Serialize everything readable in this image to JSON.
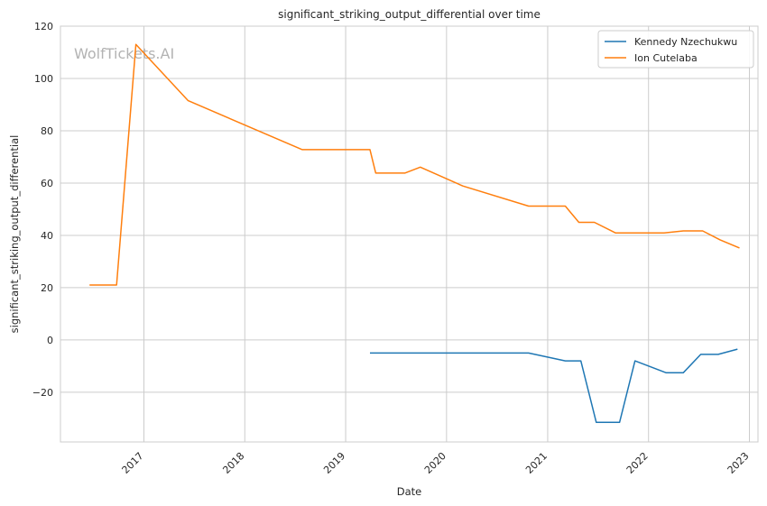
{
  "chart_data": {
    "type": "line",
    "title": "significant_striking_output_differential over time",
    "xlabel": "Date",
    "ylabel": "significant_striking_output_differential",
    "watermark": "WolfTickets.AI",
    "x_ticks": [
      "2017",
      "2018",
      "2019",
      "2020",
      "2021",
      "2022",
      "2023"
    ],
    "y_ticks": [
      -20,
      0,
      20,
      40,
      60,
      80,
      100,
      120
    ],
    "xlim": [
      "2016-03-05",
      "2023-02-01"
    ],
    "ylim": [
      -39,
      120
    ],
    "grid": true,
    "legend_position": "top-right",
    "series": [
      {
        "name": "Kennedy Nzechukwu",
        "color": "#1f77b4",
        "points": [
          [
            "2019-03-30",
            -5
          ],
          [
            "2020-10-24",
            -5
          ],
          [
            "2021-03-06",
            -8
          ],
          [
            "2021-05-01",
            -8
          ],
          [
            "2021-06-26",
            -31.5
          ],
          [
            "2021-09-18",
            -31.5
          ],
          [
            "2021-11-13",
            -8
          ],
          [
            "2022-03-05",
            -12.5
          ],
          [
            "2022-05-07",
            -12.5
          ],
          [
            "2022-07-09",
            -5.5
          ],
          [
            "2022-09-10",
            -5.5
          ],
          [
            "2022-11-19",
            -3.5
          ]
        ]
      },
      {
        "name": "Ion Cutelaba",
        "color": "#ff7f0e",
        "points": [
          [
            "2016-06-18",
            21
          ],
          [
            "2016-09-24",
            21
          ],
          [
            "2016-12-03",
            113
          ],
          [
            "2017-06-10",
            91.5
          ],
          [
            "2018-07-28",
            72.8
          ],
          [
            "2019-03-30",
            72.8
          ],
          [
            "2019-04-20",
            63.8
          ],
          [
            "2019-08-03",
            63.8
          ],
          [
            "2019-09-28",
            66.1
          ],
          [
            "2020-02-29",
            58.9
          ],
          [
            "2020-10-24",
            51.2
          ],
          [
            "2021-03-06",
            51.2
          ],
          [
            "2021-04-24",
            45
          ],
          [
            "2021-06-19",
            45
          ],
          [
            "2021-09-04",
            40.9
          ],
          [
            "2022-02-26",
            40.9
          ],
          [
            "2022-05-07",
            41.7
          ],
          [
            "2022-07-16",
            41.7
          ],
          [
            "2022-09-17",
            38.3
          ],
          [
            "2022-11-26",
            35.2
          ]
        ]
      }
    ]
  }
}
